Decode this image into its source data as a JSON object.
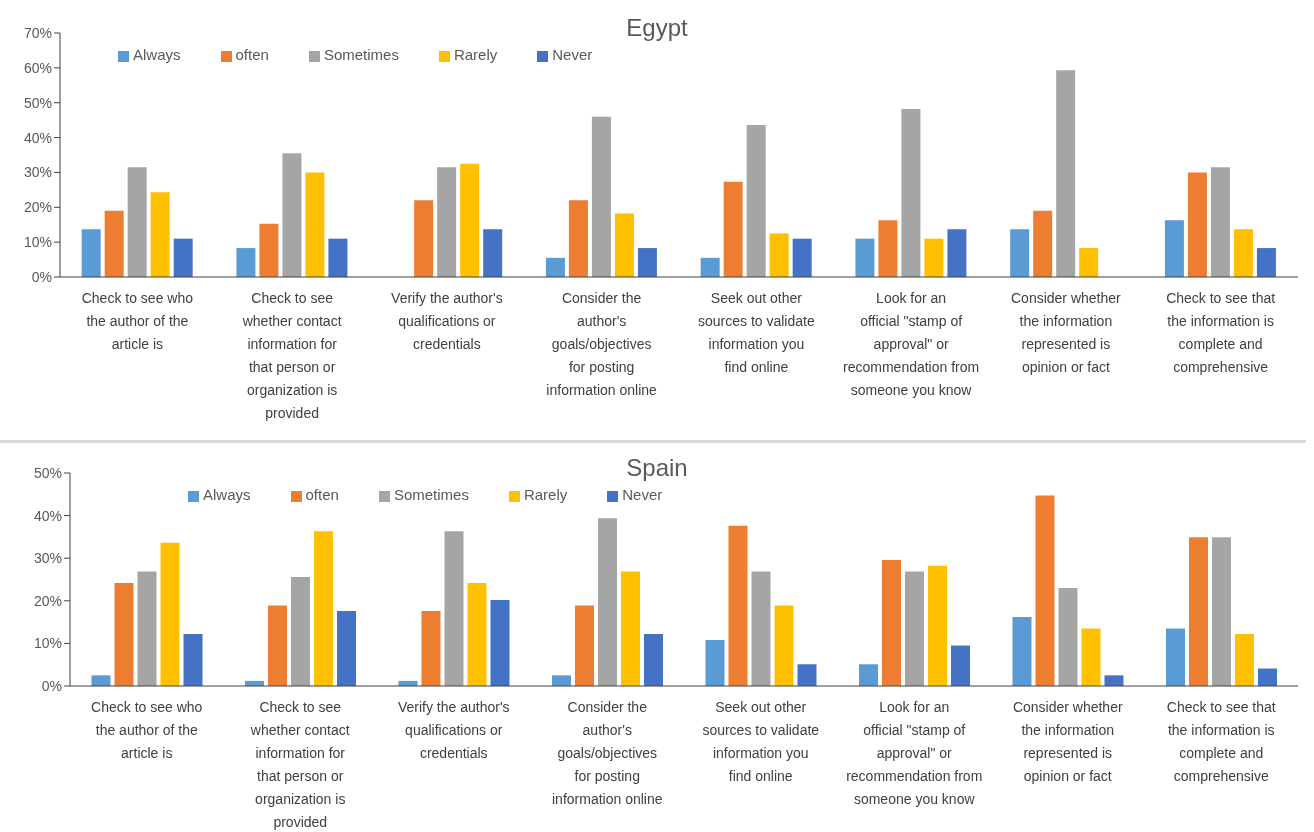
{
  "chart_data": [
    {
      "type": "bar",
      "title": "Egypt",
      "categories": [
        "Check to see who the author of the article is",
        "Check to see whether contact information for that person or organization is provided",
        "Verify the author's qualifications or credentials",
        "Consider the author's goals/objectives for posting information online",
        "Seek out other sources to validate information you find online",
        "Look for an official \"stamp of approval\" or recommendation from someone you know",
        "Consider whether the information represented is opinion or fact",
        "Check to see that the information is complete and comprehensive"
      ],
      "series": [
        {
          "name": "Always",
          "color": "#5b9bd5",
          "values": [
            13.7,
            8.3,
            0,
            5.5,
            5.5,
            11,
            13.7,
            16.3
          ]
        },
        {
          "name": "often",
          "color": "#ed7d31",
          "values": [
            19,
            15.3,
            22,
            22,
            27.3,
            16.3,
            19,
            30
          ]
        },
        {
          "name": "Sometimes",
          "color": "#a5a5a5",
          "values": [
            31.5,
            35.5,
            31.5,
            46,
            43.6,
            48.2,
            59.3,
            31.5
          ]
        },
        {
          "name": "Rarely",
          "color": "#ffc000",
          "values": [
            24.3,
            30,
            32.5,
            18.2,
            12.5,
            11,
            8.3,
            13.7
          ]
        },
        {
          "name": "Never",
          "color": "#4472c4",
          "values": [
            11,
            11,
            13.7,
            8.3,
            11,
            13.7,
            0,
            8.3
          ]
        }
      ],
      "ylim": [
        0,
        70
      ],
      "yticks": [
        {
          "value": 0,
          "label": "0%"
        },
        {
          "value": 10,
          "label": "10%"
        },
        {
          "value": 20,
          "label": "20%"
        },
        {
          "value": 30,
          "label": "30%"
        },
        {
          "value": 40,
          "label": "40%"
        },
        {
          "value": 50,
          "label": "50%"
        },
        {
          "value": 60,
          "label": "60%"
        },
        {
          "value": 70,
          "label": "70%"
        }
      ],
      "grid": false,
      "legend": "top left"
    },
    {
      "type": "bar",
      "title": "Spain",
      "categories": [
        "Check to see who the author of the article is",
        "Check to see whether contact information for that person or organization is provided",
        "Verify the author's qualifications or credentials",
        "Consider the author's goals/objectives for posting information online",
        "Seek out other sources to validate information you find online",
        "Look for an official \"stamp of approval\" or recommendation from someone you know",
        "Consider whether the information represented is opinion or fact",
        "Check to see that the information is complete and comprehensive"
      ],
      "series": [
        {
          "name": "Always",
          "color": "#5b9bd5",
          "values": [
            2.5,
            1.2,
            1.2,
            2.5,
            10.8,
            5.1,
            16.2,
            13.5
          ]
        },
        {
          "name": "often",
          "color": "#ed7d31",
          "values": [
            24.2,
            18.9,
            17.6,
            18.9,
            37.6,
            29.6,
            44.7,
            34.9
          ]
        },
        {
          "name": "Sometimes",
          "color": "#a5a5a5",
          "values": [
            26.9,
            25.6,
            36.3,
            39.4,
            26.9,
            26.9,
            23,
            34.9
          ]
        },
        {
          "name": "Rarely",
          "color": "#ffc000",
          "values": [
            33.6,
            36.3,
            24.2,
            26.9,
            18.9,
            28.2,
            13.5,
            12.2
          ]
        },
        {
          "name": "Never",
          "color": "#4472c4",
          "values": [
            12.2,
            17.6,
            20.2,
            12.2,
            5.1,
            9.5,
            2.5,
            4.1
          ]
        }
      ],
      "ylim": [
        0,
        50
      ],
      "yticks": [
        {
          "value": 0,
          "label": "0%"
        },
        {
          "value": 10,
          "label": "10%"
        },
        {
          "value": 20,
          "label": "20%"
        },
        {
          "value": 30,
          "label": "30%"
        },
        {
          "value": 40,
          "label": "40%"
        },
        {
          "value": 50,
          "label": "50%"
        }
      ],
      "grid": false,
      "legend": "top left"
    }
  ]
}
